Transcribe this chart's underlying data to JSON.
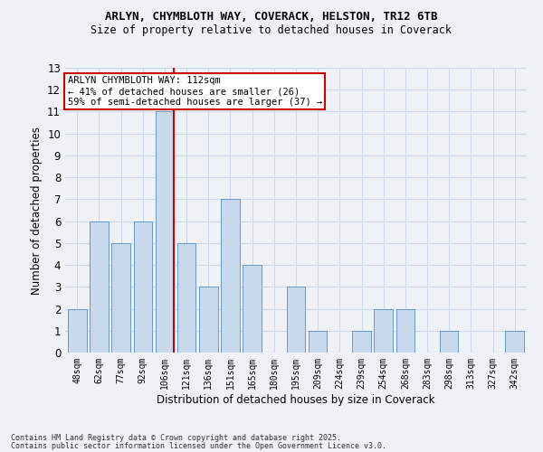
{
  "title1": "ARLYN, CHYMBLOTH WAY, COVERACK, HELSTON, TR12 6TB",
  "title2": "Size of property relative to detached houses in Coverack",
  "xlabel": "Distribution of detached houses by size in Coverack",
  "ylabel": "Number of detached properties",
  "categories": [
    "48sqm",
    "62sqm",
    "77sqm",
    "92sqm",
    "106sqm",
    "121sqm",
    "136sqm",
    "151sqm",
    "165sqm",
    "180sqm",
    "195sqm",
    "209sqm",
    "224sqm",
    "239sqm",
    "254sqm",
    "268sqm",
    "283sqm",
    "298sqm",
    "313sqm",
    "327sqm",
    "342sqm"
  ],
  "values": [
    2,
    6,
    5,
    6,
    11,
    5,
    3,
    7,
    4,
    0,
    3,
    1,
    0,
    1,
    2,
    2,
    0,
    1,
    0,
    0,
    1
  ],
  "bar_color": "#c9d9ec",
  "bar_edge_color": "#6699cc",
  "highlight_bar_index": 4,
  "highlight_line_color": "#cc0000",
  "ylim": [
    0,
    13
  ],
  "yticks": [
    0,
    1,
    2,
    3,
    4,
    5,
    6,
    7,
    8,
    9,
    10,
    11,
    12,
    13
  ],
  "annotation_title": "ARLYN CHYMBLOTH WAY: 112sqm",
  "annotation_line1": "← 41% of detached houses are smaller (26)",
  "annotation_line2": "59% of semi-detached houses are larger (37) →",
  "annotation_box_color": "#ffffff",
  "annotation_box_edge": "#cc0000",
  "footer1": "Contains HM Land Registry data © Crown copyright and database right 2025.",
  "footer2": "Contains public sector information licensed under the Open Government Licence v3.0.",
  "grid_color": "#ccd9e8",
  "background_color": "#eef2f7"
}
